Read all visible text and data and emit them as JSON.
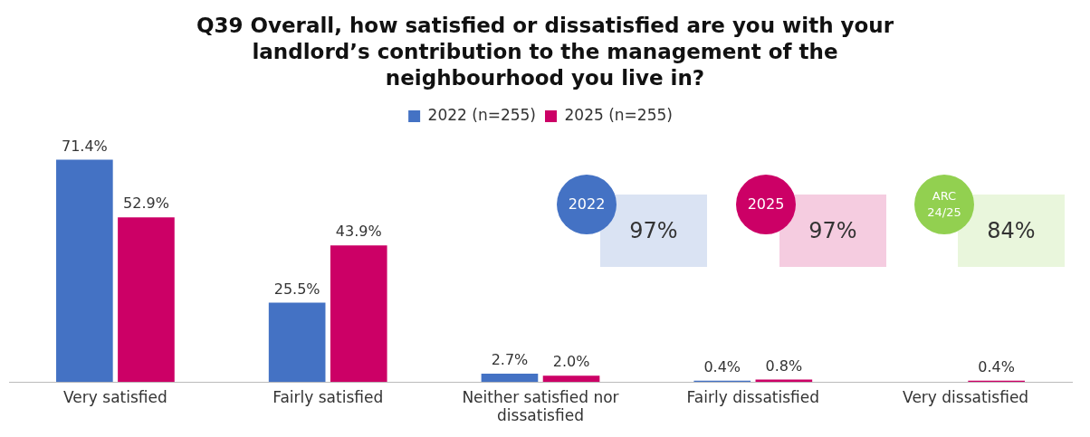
{
  "chart_data": {
    "type": "bar",
    "title": "Q39 Overall, how satisfied or dissatisfied are you with your landlord’s contribution to the management of the neighbourhood you live in?",
    "categories": [
      "Very satisfied",
      "Fairly satisfied",
      "Neither satisfied nor dissatisfied",
      "Fairly dissatisfied",
      "Very dissatisfied"
    ],
    "series": [
      {
        "name": "2022 (n=255)",
        "color": "#4472c4",
        "values": [
          71.4,
          25.5,
          2.7,
          0.4,
          null
        ],
        "value_labels": [
          "71.4%",
          "25.5%",
          "2.7%",
          "0.4%",
          null
        ]
      },
      {
        "name": "2025 (n=255)",
        "color": "#cc0066",
        "values": [
          52.9,
          43.9,
          2.0,
          0.8,
          0.4
        ],
        "value_labels": [
          "52.9%",
          "43.9%",
          "2.0%",
          "0.8%",
          "0.4%"
        ]
      }
    ],
    "legend": "top",
    "grid": false,
    "annotations": [
      "2022",
      "97%",
      "2025",
      "97%",
      "ARC 24/25",
      "84%"
    ]
  }
}
